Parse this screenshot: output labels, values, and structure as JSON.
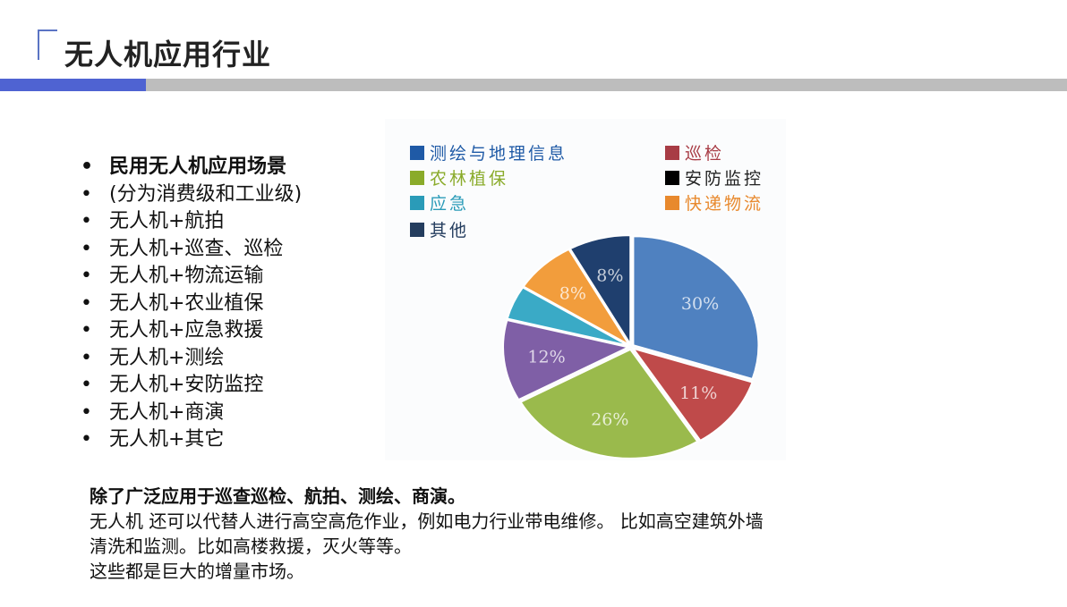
{
  "header": {
    "title": "无人机应用行业",
    "accent_color": "#4f63d2",
    "bar_gray": "#bdbdbd"
  },
  "bullets": [
    "民用无人机应用场景",
    "(分为消费级和工业级)",
    "无人机+航拍",
    "无人机+巡查、巡检",
    "无人机+物流运输",
    "无人机+农业植保",
    "无人机+应急救援",
    "无人机+测绘",
    "无人机+安防监控",
    "无人机+商演",
    "无人机+其它"
  ],
  "paragraph": {
    "heading": "除了广泛应用于巡查巡检、航拍、测绘、商演。",
    "lines": [
      "无人机 还可以代替人进行高空高危作业，例如电力行业带电维修。 比如高空建筑外墙",
      "清洗和监测。比如高楼救援，灭火等等。",
      "这些都是巨大的增量市场。"
    ]
  },
  "chart_data": {
    "type": "pie",
    "legend": [
      {
        "label": "测绘与地理信息",
        "color": "#1f5aa6"
      },
      {
        "label": "巡检",
        "color": "#a83c45"
      },
      {
        "label": "农林植保",
        "color": "#8aab2a"
      },
      {
        "label": "安防监控",
        "color": "#000000"
      },
      {
        "label": "应急",
        "color": "#2a9bb8"
      },
      {
        "label": "快递物流",
        "color": "#e8892d"
      },
      {
        "label": "其他",
        "color": "#243d5e"
      }
    ],
    "legend_placement": "top",
    "slices": [
      {
        "value": 30,
        "label": "30%",
        "color": "#4f81c0"
      },
      {
        "value": 11,
        "label": "11%",
        "color": "#bf4a4a"
      },
      {
        "value": 26,
        "label": "26%",
        "color": "#9aba4c"
      },
      {
        "value": 12,
        "label": "12%",
        "color": "#7f5fa6"
      },
      {
        "value": 5,
        "label": "",
        "color": "#3aaac6"
      },
      {
        "value": 8,
        "label": "8%",
        "color": "#f29d3c"
      },
      {
        "value": 8,
        "label": "8%",
        "color": "#1f3f6e"
      }
    ]
  }
}
